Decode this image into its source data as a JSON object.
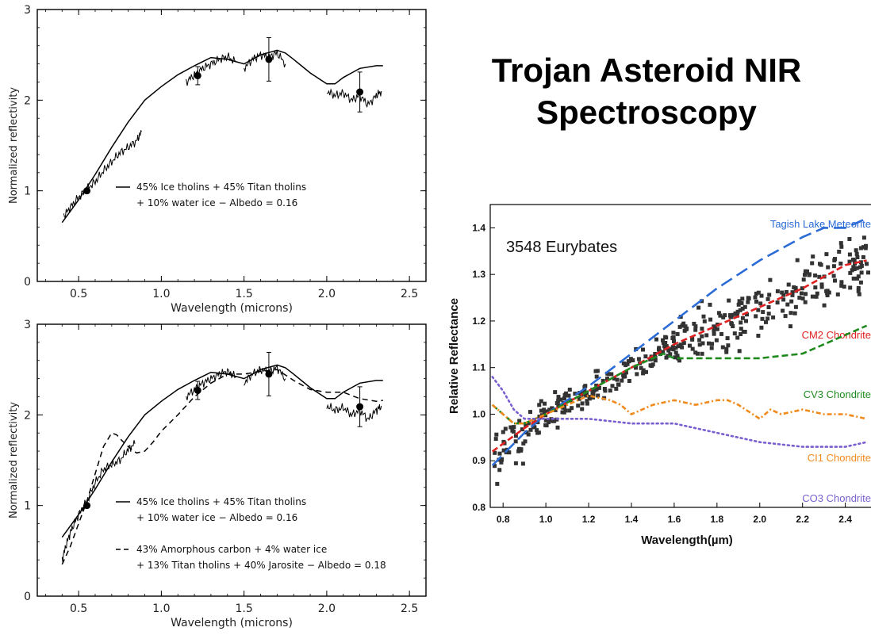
{
  "slide": {
    "title_line1": "Trojan Asteroid NIR",
    "title_line2": "Spectroscopy"
  },
  "chart_data": [
    {
      "type": "line",
      "xlabel": "Wavelength (microns)",
      "ylabel": "Normalized reflectivity",
      "xlim": [
        0.25,
        2.6
      ],
      "ylim": [
        0,
        3
      ],
      "xticks": [
        "0.5",
        "1.0",
        "1.5",
        "2.0",
        "2.5"
      ],
      "yticks": [
        "0",
        "1",
        "2",
        "3"
      ],
      "legend": [
        {
          "style": "solid",
          "lines": [
            "45% Ice tholins + 45% Titan tholins",
            "+ 10% water ice − Albedo = 0.16"
          ]
        }
      ],
      "series": [
        {
          "style": "solid",
          "x": [
            0.4,
            0.5,
            0.6,
            0.7,
            0.8,
            0.9,
            1.0,
            1.1,
            1.2,
            1.3,
            1.4,
            1.5,
            1.6,
            1.7,
            1.75,
            1.8,
            1.9,
            2.0,
            2.05,
            2.1,
            2.15,
            2.2,
            2.3,
            2.34
          ],
          "values": [
            0.65,
            0.9,
            1.18,
            1.48,
            1.76,
            2.0,
            2.15,
            2.28,
            2.38,
            2.47,
            2.45,
            2.4,
            2.5,
            2.55,
            2.52,
            2.45,
            2.3,
            2.18,
            2.18,
            2.25,
            2.3,
            2.35,
            2.38,
            2.38
          ]
        },
        {
          "style": "spectrum",
          "x": [
            0.41,
            0.45,
            0.5,
            0.55,
            0.6,
            0.65,
            0.7,
            0.75,
            0.8,
            0.85,
            0.88
          ],
          "values": [
            0.72,
            0.82,
            0.93,
            1.02,
            1.1,
            1.22,
            1.32,
            1.42,
            1.48,
            1.55,
            1.65
          ]
        },
        {
          "style": "spectrum",
          "x": [
            1.15,
            1.2,
            1.25,
            1.3,
            1.35,
            1.4,
            1.45
          ],
          "values": [
            2.2,
            2.28,
            2.35,
            2.4,
            2.45,
            2.48,
            2.42
          ]
        },
        {
          "style": "spectrum",
          "x": [
            1.5,
            1.55,
            1.6,
            1.65,
            1.7,
            1.75
          ],
          "values": [
            2.35,
            2.45,
            2.5,
            2.48,
            2.52,
            2.4
          ]
        },
        {
          "style": "spectrum",
          "x": [
            2.0,
            2.05,
            2.1,
            2.15,
            2.2,
            2.25,
            2.3,
            2.33
          ],
          "values": [
            2.1,
            2.05,
            2.08,
            2.0,
            2.05,
            1.95,
            2.05,
            2.1
          ]
        }
      ],
      "points": [
        {
          "x": 0.55,
          "y": 1.0,
          "err": 0.0
        },
        {
          "x": 1.22,
          "y": 2.27,
          "err": 0.1
        },
        {
          "x": 1.65,
          "y": 2.45,
          "err": 0.24
        },
        {
          "x": 2.2,
          "y": 2.09,
          "err": 0.22
        }
      ]
    },
    {
      "type": "line",
      "xlabel": "Wavelength (microns)",
      "ylabel": "Normalized reflectivity",
      "xlim": [
        0.25,
        2.6
      ],
      "ylim": [
        0,
        3
      ],
      "xticks": [
        "0.5",
        "1.0",
        "1.5",
        "2.0",
        "2.5"
      ],
      "yticks": [
        "0",
        "1",
        "2",
        "3"
      ],
      "legend": [
        {
          "style": "solid",
          "lines": [
            "45% Ice tholins + 45% Titan tholins",
            "+ 10% water ice − Albedo = 0.16"
          ]
        },
        {
          "style": "dashed",
          "lines": [
            "43% Amorphous carbon + 4% water ice",
            "+ 13% Titan tholins + 40% Jarosite − Albedo = 0.18"
          ]
        }
      ],
      "series": [
        {
          "style": "solid",
          "x": [
            0.4,
            0.5,
            0.6,
            0.7,
            0.8,
            0.9,
            1.0,
            1.1,
            1.2,
            1.3,
            1.4,
            1.5,
            1.6,
            1.7,
            1.75,
            1.8,
            1.9,
            2.0,
            2.05,
            2.1,
            2.15,
            2.2,
            2.3,
            2.34
          ],
          "values": [
            0.65,
            0.9,
            1.18,
            1.48,
            1.76,
            2.0,
            2.15,
            2.28,
            2.38,
            2.47,
            2.45,
            2.4,
            2.5,
            2.55,
            2.52,
            2.45,
            2.3,
            2.18,
            2.18,
            2.25,
            2.3,
            2.35,
            2.38,
            2.38
          ]
        },
        {
          "style": "dashed",
          "x": [
            0.4,
            0.45,
            0.5,
            0.55,
            0.6,
            0.65,
            0.7,
            0.73,
            0.76,
            0.8,
            0.85,
            0.9,
            0.95,
            1.0,
            1.1,
            1.2,
            1.3,
            1.4,
            1.5,
            1.6,
            1.7,
            1.8,
            1.9,
            2.0,
            2.1,
            2.2,
            2.3,
            2.34
          ],
          "values": [
            0.35,
            0.55,
            0.8,
            1.05,
            1.35,
            1.65,
            1.8,
            1.78,
            1.72,
            1.65,
            1.58,
            1.6,
            1.7,
            1.82,
            2.0,
            2.2,
            2.35,
            2.45,
            2.45,
            2.48,
            2.5,
            2.38,
            2.28,
            2.25,
            2.25,
            2.18,
            2.15,
            2.16
          ]
        },
        {
          "style": "spectrum",
          "x": [
            0.4,
            0.43,
            0.46,
            0.5,
            0.55,
            0.6,
            0.65,
            0.7,
            0.75,
            0.8,
            0.84
          ],
          "values": [
            0.4,
            0.6,
            0.75,
            0.9,
            1.05,
            1.25,
            1.4,
            1.45,
            1.5,
            1.62,
            1.68
          ]
        },
        {
          "style": "spectrum",
          "x": [
            1.15,
            1.2,
            1.25,
            1.3,
            1.35,
            1.4,
            1.45
          ],
          "values": [
            2.2,
            2.28,
            2.35,
            2.4,
            2.45,
            2.48,
            2.42
          ]
        },
        {
          "style": "spectrum",
          "x": [
            1.5,
            1.55,
            1.6,
            1.65,
            1.7,
            1.75
          ],
          "values": [
            2.35,
            2.45,
            2.5,
            2.48,
            2.52,
            2.4
          ]
        },
        {
          "style": "spectrum",
          "x": [
            2.0,
            2.05,
            2.1,
            2.15,
            2.2,
            2.25,
            2.3,
            2.33
          ],
          "values": [
            2.1,
            2.05,
            2.08,
            2.0,
            2.05,
            1.95,
            2.05,
            2.1
          ]
        }
      ],
      "points": [
        {
          "x": 0.55,
          "y": 1.0,
          "err": 0.0
        },
        {
          "x": 1.22,
          "y": 2.27,
          "err": 0.1
        },
        {
          "x": 1.65,
          "y": 2.45,
          "err": 0.24
        },
        {
          "x": 2.2,
          "y": 2.09,
          "err": 0.22
        }
      ]
    },
    {
      "type": "line",
      "annotation": "3548 Eurybates",
      "xlabel": "Wavelength(µm)",
      "ylabel": "Relative Reflectance",
      "xlim": [
        0.74,
        2.52
      ],
      "ylim": [
        0.8,
        1.45
      ],
      "xticks": [
        "0.8",
        "1.0",
        "1.2",
        "1.4",
        "1.6",
        "1.8",
        "2.0",
        "2.2",
        "2.4"
      ],
      "yticks": [
        "0.8",
        "0.9",
        "1.0",
        "1.1",
        "1.2",
        "1.3",
        "1.4"
      ],
      "series": [
        {
          "name": "Tagish Lake Meteorite",
          "color": "#2a6bd6",
          "style": "long-dash",
          "x": [
            0.75,
            0.9,
            1.0,
            1.2,
            1.4,
            1.6,
            1.8,
            2.0,
            2.2,
            2.3,
            2.4,
            2.5
          ],
          "values": [
            0.89,
            0.96,
            1.0,
            1.06,
            1.13,
            1.2,
            1.27,
            1.33,
            1.38,
            1.4,
            1.4,
            1.42
          ]
        },
        {
          "name": "CM2 Chondrite",
          "color": "#e02020",
          "style": "dash",
          "x": [
            0.75,
            0.9,
            1.0,
            1.2,
            1.4,
            1.6,
            1.8,
            2.0,
            2.2,
            2.4,
            2.5
          ],
          "values": [
            0.92,
            0.97,
            1.0,
            1.05,
            1.1,
            1.15,
            1.19,
            1.23,
            1.27,
            1.32,
            1.33
          ]
        },
        {
          "name": "CV3 Chondrite",
          "color": "#1e8a1e",
          "style": "dash",
          "x": [
            0.75,
            0.8,
            0.85,
            0.9,
            1.0,
            1.2,
            1.4,
            1.5,
            1.55,
            1.6,
            1.8,
            2.0,
            2.2,
            2.3,
            2.4,
            2.5
          ],
          "values": [
            1.02,
            1.0,
            0.98,
            0.98,
            1.0,
            1.05,
            1.1,
            1.12,
            1.13,
            1.12,
            1.12,
            1.12,
            1.13,
            1.15,
            1.17,
            1.19
          ]
        },
        {
          "name": "CI1 Chondrite",
          "color": "#f08a1c",
          "style": "dash-dot",
          "x": [
            0.75,
            0.8,
            0.85,
            0.9,
            1.0,
            1.1,
            1.2,
            1.3,
            1.35,
            1.4,
            1.5,
            1.6,
            1.7,
            1.8,
            1.85,
            1.9,
            2.0,
            2.05,
            2.1,
            2.2,
            2.3,
            2.4,
            2.5
          ],
          "values": [
            1.02,
            1.0,
            0.98,
            0.98,
            1.0,
            1.02,
            1.04,
            1.03,
            1.02,
            1.0,
            1.02,
            1.03,
            1.02,
            1.03,
            1.03,
            1.02,
            0.99,
            1.01,
            1.0,
            1.01,
            1.0,
            1.0,
            0.99
          ]
        },
        {
          "name": "CO3 Chondrite",
          "color": "#7a5fd0",
          "style": "dotted",
          "x": [
            0.75,
            0.8,
            0.85,
            0.9,
            1.0,
            1.2,
            1.4,
            1.6,
            1.8,
            2.0,
            2.2,
            2.4,
            2.5
          ],
          "values": [
            1.08,
            1.05,
            1.01,
            0.99,
            0.99,
            0.99,
            0.98,
            0.98,
            0.96,
            0.94,
            0.93,
            0.93,
            0.94
          ]
        }
      ],
      "scatter_trend": {
        "x": [
          0.75,
          1.0,
          1.2,
          1.4,
          1.6,
          1.8,
          2.0,
          2.2,
          2.4,
          2.5
        ],
        "values": [
          0.92,
          1.0,
          1.05,
          1.1,
          1.15,
          1.19,
          1.23,
          1.27,
          1.32,
          1.33
        ],
        "spread": 0.03,
        "count": 420
      }
    }
  ]
}
